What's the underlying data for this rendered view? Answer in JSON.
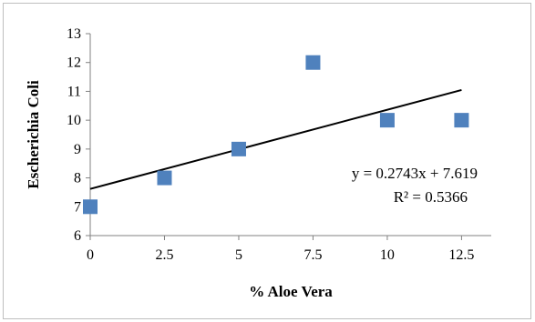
{
  "chart_data": {
    "type": "scatter",
    "xlabel": "% Aloe Vera",
    "ylabel": "Escherichia Coli",
    "xlim": [
      0,
      13.5
    ],
    "ylim": [
      6,
      13
    ],
    "x_ticks": [
      "0",
      "2.5",
      "5",
      "7.5",
      "10",
      "12.5"
    ],
    "y_ticks": [
      "6",
      "7",
      "8",
      "9",
      "10",
      "11",
      "12",
      "13"
    ],
    "grid": false,
    "series": [
      {
        "x": [
          0,
          2.5,
          5,
          7.5,
          10,
          12.5
        ],
        "y": [
          7,
          8,
          9,
          12,
          10,
          10
        ],
        "marker": "square",
        "color": "#4f81bd"
      }
    ],
    "trendline": {
      "type": "linear",
      "slope": 0.2743,
      "intercept": 7.619,
      "color": "#000000",
      "equation_label": "y = 0.2743x + 7.619",
      "r2_label": "R² = 0.5366"
    }
  }
}
